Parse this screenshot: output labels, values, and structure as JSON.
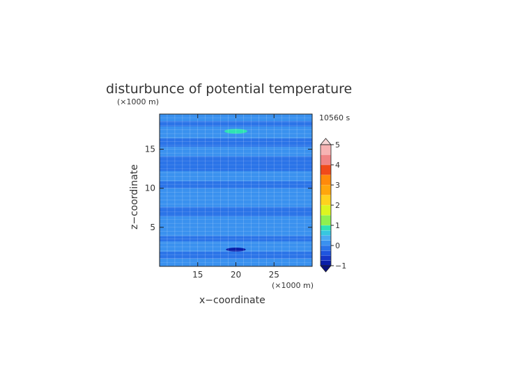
{
  "chart_data": {
    "type": "heatmap",
    "title": "disturbunce of potential temperature",
    "time_label": "10560 s",
    "xlabel": "x−coordinate",
    "ylabel": "z−coordinate",
    "x_unit": "(×1000 m)",
    "y_unit": "(×1000 m)",
    "x_range": [
      10,
      30
    ],
    "y_range": [
      0,
      19.5
    ],
    "x_ticks": [
      "15",
      "20",
      "25"
    ],
    "x_tick_values": [
      15,
      20,
      25
    ],
    "y_ticks": [
      "5",
      "10",
      "15"
    ],
    "y_tick_values": [
      5,
      10,
      15
    ],
    "grid": true,
    "colorbar": {
      "tick_labels": [
        "5",
        "4",
        "3",
        "2",
        "1",
        "0",
        "−1"
      ],
      "tick_values": [
        5,
        4,
        3,
        2,
        1,
        0,
        -1
      ],
      "levels": [
        {
          "from": -1.0,
          "to": -0.75,
          "color": "#0a1ea8"
        },
        {
          "from": -0.75,
          "to": -0.5,
          "color": "#1536c8"
        },
        {
          "from": -0.5,
          "to": -0.25,
          "color": "#1f55df"
        },
        {
          "from": -0.25,
          "to": 0.0,
          "color": "#2b74e8"
        },
        {
          "from": 0.0,
          "to": 0.25,
          "color": "#3a91ef"
        },
        {
          "from": 0.25,
          "to": 0.5,
          "color": "#4aaaf2"
        },
        {
          "from": 0.5,
          "to": 0.75,
          "color": "#37c7e0"
        },
        {
          "from": 0.75,
          "to": 1.0,
          "color": "#2ee2b4"
        },
        {
          "from": 1.0,
          "to": 1.5,
          "color": "#8ef050"
        },
        {
          "from": 1.5,
          "to": 2.0,
          "color": "#dcf520"
        },
        {
          "from": 2.0,
          "to": 2.5,
          "color": "#ffd21e"
        },
        {
          "from": 2.5,
          "to": 3.0,
          "color": "#ffa60c"
        },
        {
          "from": 3.0,
          "to": 3.5,
          "color": "#ff8a0a"
        },
        {
          "from": 3.5,
          "to": 4.0,
          "color": "#f04a1a"
        },
        {
          "from": 4.0,
          "to": 4.5,
          "color": "#f08484"
        },
        {
          "from": 4.5,
          "to": 5.0,
          "color": "#f7b3b3"
        }
      ],
      "over_color": "#f8d6d6",
      "under_color": "#0a1280"
    },
    "bands": [
      {
        "z": [
          0.0,
          1.0
        ],
        "color": "#3a91ef"
      },
      {
        "z": [
          1.0,
          1.9
        ],
        "color": "#2b74e8"
      },
      {
        "z": [
          1.9,
          3.2
        ],
        "color": "#3a91ef"
      },
      {
        "z": [
          3.2,
          3.9
        ],
        "color": "#2b74e8"
      },
      {
        "z": [
          3.9,
          6.4
        ],
        "color": "#3a91ef"
      },
      {
        "z": [
          6.4,
          7.6
        ],
        "color": "#2b74e8"
      },
      {
        "z": [
          7.6,
          10.0
        ],
        "color": "#3a91ef"
      },
      {
        "z": [
          10.0,
          10.9
        ],
        "color": "#2b74e8"
      },
      {
        "z": [
          10.9,
          12.2
        ],
        "color": "#3a91ef"
      },
      {
        "z": [
          12.2,
          14.1
        ],
        "color": "#2b74e8"
      },
      {
        "z": [
          14.1,
          15.3
        ],
        "color": "#3a91ef"
      },
      {
        "z": [
          15.3,
          16.4
        ],
        "color": "#2b74e8"
      },
      {
        "z": [
          16.4,
          17.9
        ],
        "color": "#3a91ef"
      },
      {
        "z": [
          17.9,
          18.6
        ],
        "color": "#2b74e8"
      },
      {
        "z": [
          18.6,
          19.5
        ],
        "color": "#3a91ef"
      }
    ],
    "features": [
      {
        "name": "warm-spot",
        "x": [
          18.5,
          21.5
        ],
        "z": [
          17.0,
          17.6
        ],
        "color": "#2ee2b4"
      },
      {
        "name": "cold-spot",
        "x": [
          18.7,
          21.3
        ],
        "z": [
          1.9,
          2.4
        ],
        "color": "#0a1ea8"
      }
    ]
  }
}
